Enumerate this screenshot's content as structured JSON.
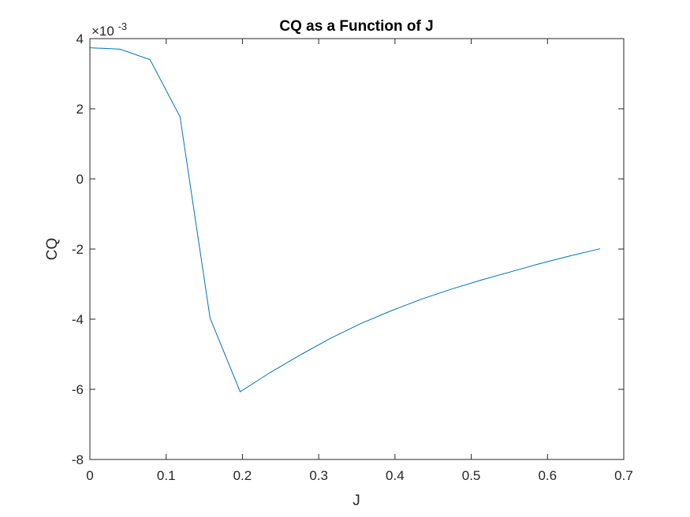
{
  "chart_data": {
    "type": "line",
    "title": "CQ as a Function of J",
    "xlabel": "J",
    "ylabel": "CQ",
    "y_exponent_label": "×10",
    "y_exponent_power": "-3",
    "xlim": [
      0,
      0.7
    ],
    "ylim": [
      -0.008,
      0.004
    ],
    "x_ticks": [
      0,
      0.1,
      0.2,
      0.3,
      0.4,
      0.5,
      0.6,
      0.7
    ],
    "x_tick_labels": [
      "0",
      "0.1",
      "0.2",
      "0.3",
      "0.4",
      "0.5",
      "0.6",
      "0.7"
    ],
    "y_ticks": [
      -0.008,
      -0.006,
      -0.004,
      -0.002,
      0,
      0.002,
      0.004
    ],
    "y_tick_labels": [
      "-8",
      "-6",
      "-4",
      "-2",
      "0",
      "2",
      "4"
    ],
    "grid": false,
    "series": [
      {
        "color": "#0072BD",
        "x": [
          0,
          0.0394,
          0.0788,
          0.1182,
          0.1576,
          0.197,
          0.2364,
          0.2758,
          0.3152,
          0.3546,
          0.394,
          0.4334,
          0.4728,
          0.5122,
          0.5516,
          0.591,
          0.6304,
          0.669
        ],
        "y": [
          0.00374,
          0.0037,
          0.0034,
          0.00177,
          -0.00397,
          -0.00607,
          -0.00552,
          -0.00502,
          -0.00455,
          -0.00413,
          -0.00377,
          -0.00344,
          -0.00315,
          -0.00289,
          -0.00265,
          -0.00241,
          -0.00219,
          -0.00199
        ]
      }
    ]
  }
}
